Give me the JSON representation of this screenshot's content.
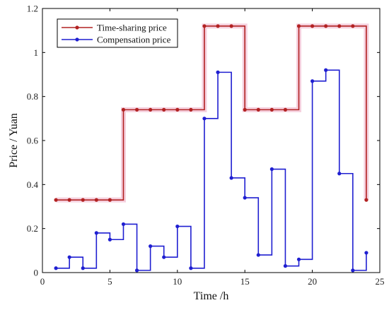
{
  "chart_data": {
    "type": "line",
    "title": "",
    "xlabel": "Time /h",
    "ylabel": "Price / Yuan",
    "xlim": [
      0,
      25
    ],
    "ylim": [
      0,
      1.2
    ],
    "x_ticks": [
      0,
      5,
      10,
      15,
      20,
      25
    ],
    "y_ticks": [
      0,
      0.2,
      0.4,
      0.6,
      0.8,
      1,
      1.2
    ],
    "x_tick_labels": [
      "0",
      "5",
      "10",
      "15",
      "20",
      "25"
    ],
    "y_tick_labels": [
      "0",
      "0.2",
      "0.4",
      "0.6",
      "0.8",
      "1",
      "1.2"
    ],
    "grid": false,
    "legend_position": "top-left",
    "step": "post",
    "x": [
      1,
      2,
      3,
      4,
      5,
      6,
      7,
      8,
      9,
      10,
      11,
      12,
      13,
      14,
      15,
      16,
      17,
      18,
      19,
      20,
      21,
      22,
      23,
      24
    ],
    "series": [
      {
        "name": "Time-sharing price",
        "color": "#b22222",
        "values": [
          0.33,
          0.33,
          0.33,
          0.33,
          0.33,
          0.74,
          0.74,
          0.74,
          0.74,
          0.74,
          0.74,
          1.12,
          1.12,
          1.12,
          0.74,
          0.74,
          0.74,
          0.74,
          1.12,
          1.12,
          1.12,
          1.12,
          1.12,
          0.33
        ]
      },
      {
        "name": "Compensation price",
        "color": "#1f1fd1",
        "values": [
          0.02,
          0.07,
          0.02,
          0.18,
          0.15,
          0.22,
          0.01,
          0.12,
          0.07,
          0.21,
          0.02,
          0.7,
          0.91,
          0.43,
          0.34,
          0.08,
          0.47,
          0.03,
          0.06,
          0.87,
          0.92,
          0.45,
          0.01,
          0.09
        ]
      }
    ]
  }
}
